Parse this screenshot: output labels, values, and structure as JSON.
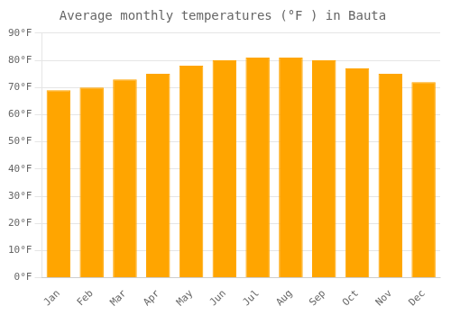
{
  "chart_data": {
    "type": "bar",
    "title": "Average monthly temperatures (°F ) in Bauta",
    "categories": [
      "Jan",
      "Feb",
      "Mar",
      "Apr",
      "May",
      "Jun",
      "Jul",
      "Aug",
      "Sep",
      "Oct",
      "Nov",
      "Dec"
    ],
    "values": [
      69,
      70,
      73,
      75,
      78,
      80,
      81,
      81,
      80,
      77,
      75,
      72
    ],
    "color": "#FFA500",
    "ylim": [
      0,
      90
    ],
    "yticks": [
      {
        "value": 0,
        "label": "0°F"
      },
      {
        "value": 10,
        "label": "10°F"
      },
      {
        "value": 20,
        "label": "20°F"
      },
      {
        "value": 30,
        "label": "30°F"
      },
      {
        "value": 40,
        "label": "40°F"
      },
      {
        "value": 50,
        "label": "50°F"
      },
      {
        "value": 60,
        "label": "60°F"
      },
      {
        "value": 70,
        "label": "70°F"
      },
      {
        "value": 80,
        "label": "80°F"
      },
      {
        "value": 90,
        "label": "90°F"
      }
    ],
    "grid": true
  }
}
